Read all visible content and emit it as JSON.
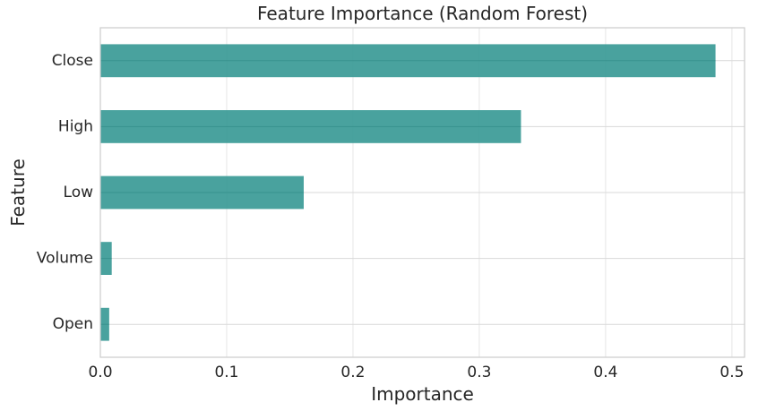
{
  "chart_data": {
    "type": "bar",
    "orientation": "horizontal",
    "title": "Feature Importance (Random Forest)",
    "xlabel": "Importance",
    "ylabel": "Feature",
    "categories": [
      "Close",
      "High",
      "Low",
      "Volume",
      "Open"
    ],
    "values": [
      0.487,
      0.333,
      0.161,
      0.009,
      0.007
    ],
    "xlim": [
      0,
      0.51
    ],
    "xticks": [
      0.0,
      0.1,
      0.2,
      0.3,
      0.4,
      0.5
    ],
    "xtick_labels": [
      "0.0",
      "0.1",
      "0.2",
      "0.3",
      "0.4",
      "0.5"
    ],
    "grid": true,
    "bar_color": "#3a9a96",
    "grid_color": "#e6e6e6",
    "frame_color": "#cccccc"
  }
}
